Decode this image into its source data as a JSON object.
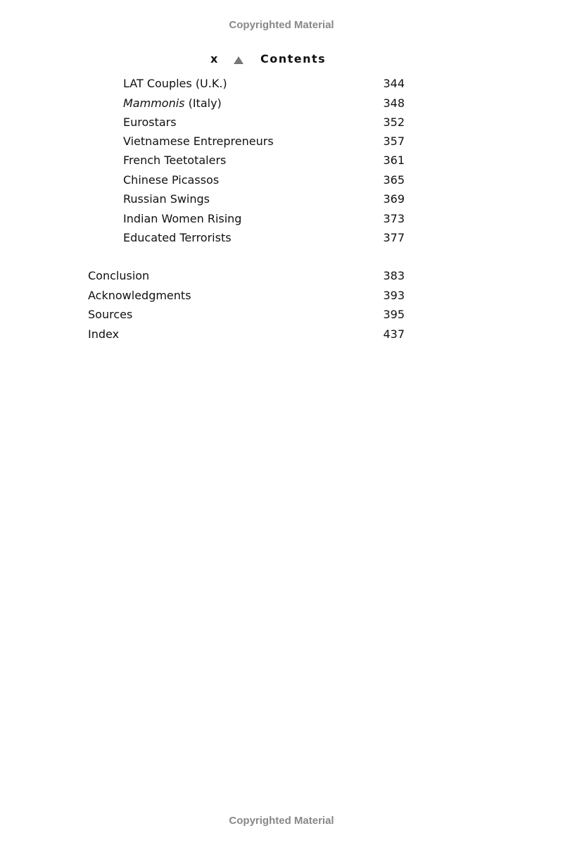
{
  "watermark_top": "Copyrighted Material",
  "watermark_bottom": "Copyrighted Material",
  "header": {
    "page_number": "x",
    "ornament": "triangle-icon",
    "title": "Contents"
  },
  "sub_entries": [
    {
      "label": "LAT Couples (U.K.)",
      "page": "344"
    },
    {
      "label_italic": "Mammonis",
      "label_rest": " (Italy)",
      "page": "348"
    },
    {
      "label": "Eurostars",
      "page": "352"
    },
    {
      "label": "Vietnamese Entrepreneurs",
      "page": "357"
    },
    {
      "label": "French Teetotalers",
      "page": "361"
    },
    {
      "label": "Chinese Picassos",
      "page": "365"
    },
    {
      "label": "Russian Swings",
      "page": "369"
    },
    {
      "label": "Indian Women Rising",
      "page": "373"
    },
    {
      "label": "Educated Terrorists",
      "page": "377"
    }
  ],
  "main_entries": [
    {
      "label": "Conclusion",
      "page": "383"
    },
    {
      "label": "Acknowledgments",
      "page": "393"
    },
    {
      "label": "Sources",
      "page": "395"
    },
    {
      "label": "Index",
      "page": "437"
    }
  ]
}
